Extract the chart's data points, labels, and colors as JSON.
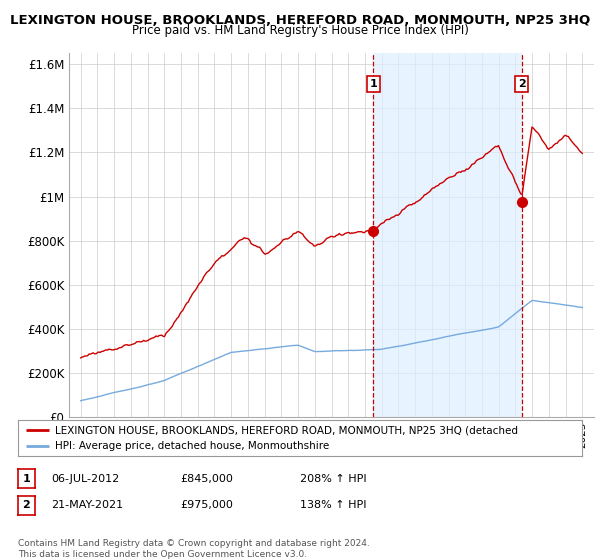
{
  "title": "LEXINGTON HOUSE, BROOKLANDS, HEREFORD ROAD, MONMOUTH, NP25 3HQ",
  "subtitle": "Price paid vs. HM Land Registry's House Price Index (HPI)",
  "ylabel_ticks": [
    "£0",
    "£200K",
    "£400K",
    "£600K",
    "£800K",
    "£1M",
    "£1.2M",
    "£1.4M",
    "£1.6M"
  ],
  "ytick_values": [
    0,
    200000,
    400000,
    600000,
    800000,
    1000000,
    1200000,
    1400000,
    1600000
  ],
  "ylim": [
    0,
    1650000
  ],
  "year_start": 1995,
  "year_end": 2025,
  "marker1_date": 2012.5,
  "marker1_value": 845000,
  "marker1_label": "1",
  "marker1_text": "06-JUL-2012",
  "marker1_price": "£845,000",
  "marker1_hpi": "208% ↑ HPI",
  "marker2_date": 2021.38,
  "marker2_value": 975000,
  "marker2_label": "2",
  "marker2_text": "21-MAY-2021",
  "marker2_price": "£975,000",
  "marker2_hpi": "138% ↑ HPI",
  "red_line_color": "#cc0000",
  "blue_line_color": "#77aadd",
  "shade_color": "#ddeeff",
  "background_color": "#ffffff",
  "grid_color": "#cccccc",
  "legend_label_red": "LEXINGTON HOUSE, BROOKLANDS, HEREFORD ROAD, MONMOUTH, NP25 3HQ (detached",
  "legend_label_blue": "HPI: Average price, detached house, Monmouthshire",
  "footer": "Contains HM Land Registry data © Crown copyright and database right 2024.\nThis data is licensed under the Open Government Licence v3.0."
}
